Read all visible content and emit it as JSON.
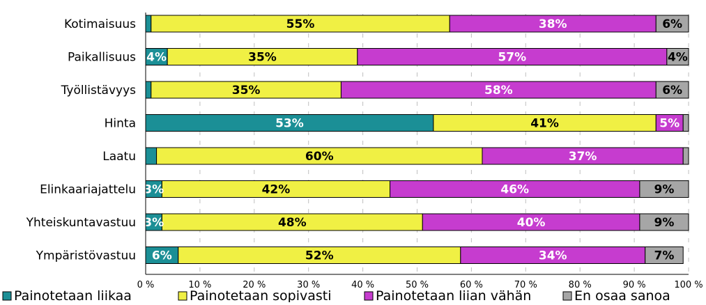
{
  "chart_data": {
    "type": "bar",
    "orientation": "horizontal",
    "stacked": true,
    "percent_stacked": true,
    "categories": [
      "Kotimaisuus",
      "Paikallisuus",
      "Työllistävyys",
      "Hinta",
      "Laatu",
      "Elinkaariajattelu",
      "Yhteiskuntavastuu",
      "Ympäristövastuu"
    ],
    "series": [
      {
        "name": "Painotetaan liikaa",
        "color": "#1b8f96",
        "label_color": "#ffffff",
        "values": [
          1,
          4,
          1,
          53,
          2,
          3,
          3,
          6
        ],
        "labels": [
          "",
          "4%",
          "",
          "53%",
          "",
          "3%",
          "3%",
          "6%"
        ]
      },
      {
        "name": "Painotetaan sopivasti",
        "color": "#f0f044",
        "label_color": "#000000",
        "values": [
          55,
          35,
          35,
          41,
          60,
          42,
          48,
          52
        ],
        "labels": [
          "55%",
          "35%",
          "35%",
          "41%",
          "60%",
          "42%",
          "48%",
          "52%"
        ]
      },
      {
        "name": "Painotetaan liian vähän",
        "color": "#c63ccf",
        "label_color": "#ffffff",
        "values": [
          38,
          57,
          58,
          5,
          37,
          46,
          40,
          34
        ],
        "labels": [
          "38%",
          "57%",
          "58%",
          "5%",
          "37%",
          "46%",
          "40%",
          "34%"
        ]
      },
      {
        "name": "En osaa sanoa",
        "color": "#a6a6a6",
        "label_color": "#000000",
        "values": [
          6,
          4,
          6,
          1,
          1,
          9,
          9,
          7
        ],
        "labels": [
          "6%",
          "4%",
          "6%",
          "",
          "",
          "9%",
          "9%",
          "7%"
        ]
      }
    ],
    "xlim": [
      0,
      100
    ],
    "xticks": [
      0,
      10,
      20,
      30,
      40,
      50,
      60,
      70,
      80,
      90,
      100
    ],
    "xtick_labels": [
      "0 %",
      "10 %",
      "20 %",
      "30 %",
      "40 %",
      "50 %",
      "60 %",
      "70 %",
      "80 %",
      "90 %",
      "100 %"
    ],
    "grid": "vertical dashed",
    "legend_position": "bottom"
  }
}
